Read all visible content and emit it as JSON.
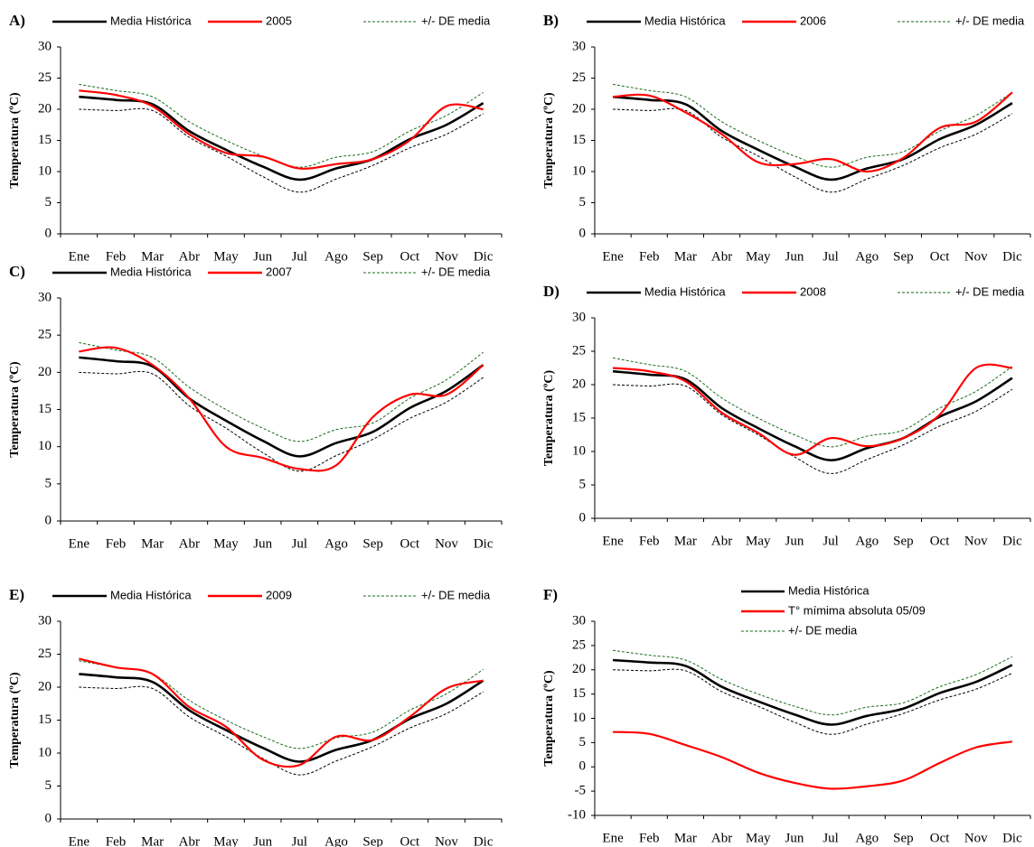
{
  "chart_data": [
    {
      "type": "line",
      "label": "A)",
      "y_label": "Temperatura (ºC)",
      "legend": "top-row",
      "categories": [
        "Ene",
        "Feb",
        "Mar",
        "Abr",
        "May",
        "Jun",
        "Jul",
        "Ago",
        "Sep",
        "Oct",
        "Nov",
        "Dic"
      ],
      "ylim": [
        0,
        30
      ],
      "yticks": [
        0,
        5,
        10,
        15,
        20,
        25,
        30
      ],
      "series": [
        {
          "name": "Media Histórica",
          "color": "#000000",
          "style": "solid",
          "values": [
            22,
            21.5,
            20.8,
            16.5,
            13.5,
            10.8,
            8.7,
            10.5,
            12,
            15.2,
            17.5,
            21
          ]
        },
        {
          "name": "2005",
          "color": "#ff0000",
          "style": "solid",
          "values": [
            23,
            22.3,
            20.5,
            16,
            13,
            12.4,
            10.5,
            11.2,
            12,
            15,
            20.5,
            20
          ]
        },
        {
          "name": "+/- DE media",
          "color": "#1a6b1a",
          "style": "dashed",
          "values": [
            24,
            23,
            22,
            18,
            15,
            12.5,
            10.7,
            12.3,
            13.2,
            16.5,
            19,
            22.7
          ]
        },
        {
          "color": "#000000",
          "style": "dashed",
          "values": [
            20,
            19.8,
            19.8,
            15.5,
            12.5,
            9.2,
            6.7,
            8.8,
            11,
            13.8,
            16,
            19.3
          ]
        }
      ]
    },
    {
      "type": "line",
      "label": "B)",
      "y_label": "Temperatura (ºC)",
      "legend": "top-row",
      "categories": [
        "Ene",
        "Feb",
        "Mar",
        "Abr",
        "May",
        "Jun",
        "Jul",
        "Ago",
        "Sep",
        "Oct",
        "Nov",
        "Dic"
      ],
      "ylim": [
        0,
        30
      ],
      "yticks": [
        0,
        5,
        10,
        15,
        20,
        25,
        30
      ],
      "series": [
        {
          "name": "Media Histórica",
          "color": "#000000",
          "style": "solid",
          "values": [
            22,
            21.5,
            20.8,
            16.5,
            13.5,
            10.8,
            8.7,
            10.5,
            12,
            15.2,
            17.5,
            21
          ]
        },
        {
          "name": "2006",
          "color": "#ff0000",
          "style": "solid",
          "values": [
            22,
            22.2,
            19.5,
            16,
            11.5,
            11.2,
            12,
            10,
            12.2,
            17,
            18,
            22.7
          ]
        },
        {
          "name": "+/- DE media",
          "color": "#1a6b1a",
          "style": "dashed",
          "values": [
            24,
            23,
            22,
            18,
            15,
            12.5,
            10.7,
            12.3,
            13.2,
            16.5,
            19,
            22.7
          ]
        },
        {
          "color": "#000000",
          "style": "dashed",
          "values": [
            20,
            19.8,
            19.8,
            15.5,
            12.5,
            9.2,
            6.7,
            8.8,
            11,
            13.8,
            16,
            19.3
          ]
        }
      ]
    },
    {
      "type": "line",
      "label": "C)",
      "y_label": "Temperatura (ºC)",
      "legend": "top-row",
      "categories": [
        "Ene",
        "Feb",
        "Mar",
        "Abr",
        "May",
        "Jun",
        "Jul",
        "Ago",
        "Sep",
        "Oct",
        "Nov",
        "Dic"
      ],
      "ylim": [
        0,
        30
      ],
      "yticks": [
        0,
        5,
        10,
        15,
        20,
        25,
        30
      ],
      "series": [
        {
          "name": "Media Histórica",
          "color": "#000000",
          "style": "solid",
          "values": [
            22,
            21.5,
            20.8,
            16.5,
            13.5,
            10.8,
            8.7,
            10.5,
            12,
            15.2,
            17.5,
            21
          ]
        },
        {
          "name": "2007",
          "color": "#ff0000",
          "style": "solid",
          "values": [
            22.8,
            23.3,
            21,
            16.5,
            10,
            8.5,
            7,
            7.5,
            14,
            17,
            17,
            21
          ]
        },
        {
          "name": "+/- DE media",
          "color": "#1a6b1a",
          "style": "dashed",
          "values": [
            24,
            23,
            22,
            18,
            15,
            12.5,
            10.7,
            12.3,
            13.2,
            16.5,
            19,
            22.7
          ]
        },
        {
          "color": "#000000",
          "style": "dashed",
          "values": [
            20,
            19.8,
            19.8,
            15.5,
            12.5,
            9.2,
            6.7,
            8.8,
            11,
            13.8,
            16,
            19.3
          ]
        }
      ]
    },
    {
      "type": "line",
      "label": "D)",
      "y_label": "Temperatura (ºC)",
      "legend": "top-row",
      "categories": [
        "Ene",
        "Feb",
        "Mar",
        "Abr",
        "May",
        "Jun",
        "Jul",
        "Ago",
        "Sep",
        "Oct",
        "Nov",
        "Dic"
      ],
      "ylim": [
        0,
        30
      ],
      "yticks": [
        0,
        5,
        10,
        15,
        20,
        25,
        30
      ],
      "series": [
        {
          "name": "Media Histórica",
          "color": "#000000",
          "style": "solid",
          "values": [
            22,
            21.5,
            20.8,
            16.5,
            13.5,
            10.8,
            8.7,
            10.5,
            12,
            15.2,
            17.5,
            21
          ]
        },
        {
          "name": "2008",
          "color": "#ff0000",
          "style": "solid",
          "values": [
            22.5,
            22,
            20.5,
            15.8,
            12.8,
            9.5,
            12,
            10.8,
            12,
            15.5,
            22.5,
            22.5
          ]
        },
        {
          "name": "+/- DE media",
          "color": "#1a6b1a",
          "style": "dashed",
          "values": [
            24,
            23,
            22,
            18,
            15,
            12.5,
            10.7,
            12.3,
            13.2,
            16.5,
            19,
            22.7
          ]
        },
        {
          "color": "#000000",
          "style": "dashed",
          "values": [
            20,
            19.8,
            19.8,
            15.5,
            12.5,
            9.2,
            6.7,
            8.8,
            11,
            13.8,
            16,
            19.3
          ]
        }
      ]
    },
    {
      "type": "line",
      "label": "E)",
      "y_label": "Temperatura (ºC)",
      "legend": "top-row",
      "categories": [
        "Ene",
        "Feb",
        "Mar",
        "Abr",
        "May",
        "Jun",
        "Jul",
        "Ago",
        "Sep",
        "Oct",
        "Nov",
        "Dic"
      ],
      "ylim": [
        0,
        30
      ],
      "yticks": [
        0,
        5,
        10,
        15,
        20,
        25,
        30
      ],
      "series": [
        {
          "name": "Media Histórica",
          "color": "#000000",
          "style": "solid",
          "values": [
            22,
            21.5,
            20.8,
            16.5,
            13.5,
            10.8,
            8.7,
            10.5,
            12,
            15.2,
            17.5,
            21
          ]
        },
        {
          "name": "2009",
          "color": "#ff0000",
          "style": "solid",
          "values": [
            24.3,
            23,
            22,
            17,
            14,
            9,
            8.2,
            12.5,
            12,
            15.5,
            19.8,
            21
          ]
        },
        {
          "name": "+/- DE media",
          "color": "#1a6b1a",
          "style": "dashed",
          "values": [
            24,
            23,
            22,
            18,
            15,
            12.5,
            10.7,
            12.3,
            13.2,
            16.5,
            19,
            22.7
          ]
        },
        {
          "color": "#000000",
          "style": "dashed",
          "values": [
            20,
            19.8,
            19.8,
            15.5,
            12.5,
            9.2,
            6.7,
            8.8,
            11,
            13.8,
            16,
            19.3
          ]
        }
      ]
    },
    {
      "type": "line",
      "label": "F)",
      "y_label": "Temperatura (ºC)",
      "legend": "top-column",
      "categories": [
        "Ene",
        "Feb",
        "Mar",
        "Abr",
        "May",
        "Jun",
        "Jul",
        "Ago",
        "Sep",
        "Oct",
        "Nov",
        "Dic"
      ],
      "ylim": [
        -10,
        30
      ],
      "yticks": [
        -10,
        -5,
        0,
        5,
        10,
        15,
        20,
        25,
        30
      ],
      "series": [
        {
          "name": "Media Histórica",
          "color": "#000000",
          "style": "solid",
          "values": [
            22,
            21.5,
            20.8,
            16.5,
            13.5,
            10.8,
            8.7,
            10.5,
            12,
            15.2,
            17.5,
            21
          ]
        },
        {
          "name": "T° mímima absoluta 05/09",
          "color": "#ff0000",
          "style": "solid",
          "values": [
            7.2,
            6.8,
            4.5,
            2,
            -1.2,
            -3.3,
            -4.5,
            -4,
            -2.8,
            0.8,
            4,
            5.2
          ]
        },
        {
          "name": "+/- DE media",
          "color": "#1a6b1a",
          "style": "dashed",
          "values": [
            24,
            23,
            22,
            18,
            15,
            12.5,
            10.7,
            12.3,
            13.2,
            16.5,
            19,
            22.7
          ]
        },
        {
          "color": "#000000",
          "style": "dashed",
          "values": [
            20,
            19.8,
            19.8,
            15.5,
            12.5,
            9.2,
            6.7,
            8.8,
            11,
            13.8,
            16,
            19.3
          ]
        }
      ]
    }
  ]
}
